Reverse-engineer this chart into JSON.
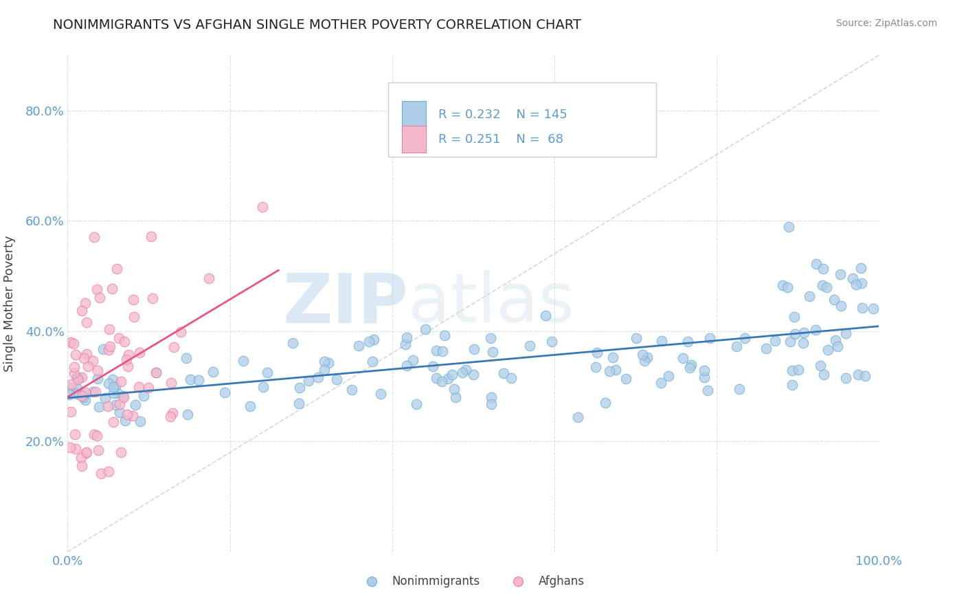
{
  "title": "NONIMMIGRANTS VS AFGHAN SINGLE MOTHER POVERTY CORRELATION CHART",
  "source": "Source: ZipAtlas.com",
  "ylabel": "Single Mother Poverty",
  "xlim": [
    0,
    1.0
  ],
  "ylim": [
    0,
    0.9
  ],
  "yticks": [
    0.2,
    0.4,
    0.6,
    0.8
  ],
  "ytick_labels": [
    "20.0%",
    "40.0%",
    "60.0%",
    "80.0%"
  ],
  "xticks": [
    0.0,
    0.2,
    0.4,
    0.6,
    0.8,
    1.0
  ],
  "xtick_labels": [
    "0.0%",
    "",
    "",
    "",
    "",
    "100.0%"
  ],
  "nonimmigrant_color": "#aecde8",
  "afghan_color": "#f4b8cc",
  "nonimmigrant_edge": "#6aadd5",
  "afghan_edge": "#f07aa0",
  "trend_blue": "#3a78b5",
  "trend_pink": "#e85585",
  "legend_label1": "Nonimmigrants",
  "legend_label2": "Afghans",
  "R1": 0.232,
  "N1": 145,
  "R2": 0.251,
  "N2": 68,
  "watermark_zip": "ZIP",
  "watermark_atlas": "atlas",
  "grid_color": "#dddddd",
  "ref_line_color": "#cccccc"
}
